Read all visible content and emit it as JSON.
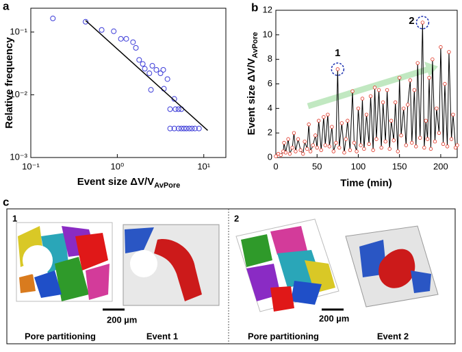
{
  "panel_labels": [
    "a",
    "b",
    "c"
  ],
  "chart_data": [
    {
      "type": "scatter",
      "x_label": "Event size ΔV/V",
      "x_label_sub": "AvPore",
      "y_label": "Relative frequency",
      "log_x": true,
      "log_y": true,
      "xlim": [
        0.1,
        18
      ],
      "ylim": [
        0.001,
        0.24
      ],
      "xticks": [
        {
          "value": 0.1,
          "label": "10⁻¹"
        },
        {
          "value": 1,
          "label": "10⁰"
        },
        {
          "value": 10,
          "label": "10¹"
        }
      ],
      "yticks": [
        {
          "value": 0.001,
          "label": "10⁻³"
        },
        {
          "value": 0.01,
          "label": "10⁻²"
        },
        {
          "value": 0.1,
          "label": "10⁻¹"
        }
      ],
      "marker_color": "#3a3ad8",
      "x": [
        0.18,
        0.43,
        0.66,
        0.91,
        1.1,
        1.27,
        1.52,
        1.64,
        1.79,
        1.97,
        2.08,
        2.54,
        2.35,
        2.83,
        3.16,
        3.4,
        2.45,
        3.46,
        3.8,
        4.56,
        4.08,
        4.7,
        5.1,
        5.5,
        4.08,
        4.56,
        5.1,
        5.5,
        5.9,
        6.3,
        6.8,
        7.3,
        7.9,
        8.8
      ],
      "values": [
        0.165,
        0.146,
        0.108,
        0.103,
        0.078,
        0.078,
        0.069,
        0.056,
        0.036,
        0.031,
        0.026,
        0.029,
        0.022,
        0.025,
        0.022,
        0.025,
        0.012,
        0.0125,
        0.0178,
        0.0086,
        0.0059,
        0.0059,
        0.0059,
        0.0059,
        0.0029,
        0.0029,
        0.0029,
        0.0029,
        0.0029,
        0.0029,
        0.0029,
        0.0029,
        0.0029,
        0.0029
      ],
      "fit_line": {
        "x": [
          0.43,
          11.1
        ],
        "y": [
          0.153,
          0.0027
        ],
        "color": "#000000"
      }
    },
    {
      "type": "line",
      "x_label": "Time (min)",
      "y_label": "Event size ΔV/V",
      "y_label_sub": "AvPore",
      "xlim": [
        0,
        220
      ],
      "ylim": [
        0,
        12
      ],
      "xticks": [
        0,
        50,
        100,
        150,
        200
      ],
      "yticks": [
        0,
        2,
        4,
        6,
        8,
        10,
        12
      ],
      "marker_color": "#e03020",
      "line_color": "#000000",
      "x": [
        0,
        3,
        6,
        9,
        10,
        12,
        15,
        17,
        20,
        22,
        24,
        27,
        30,
        33,
        35,
        38,
        40,
        42,
        45,
        48,
        50,
        52,
        55,
        58,
        60,
        63,
        65,
        68,
        70,
        73,
        75,
        77,
        80,
        83,
        85,
        87,
        90,
        93,
        95,
        98,
        100,
        103,
        105,
        107,
        110,
        113,
        115,
        118,
        120,
        122,
        125,
        128,
        130,
        133,
        135,
        138,
        140,
        143,
        145,
        148,
        150,
        152,
        155,
        158,
        160,
        163,
        165,
        168,
        170,
        172,
        175,
        178,
        180,
        182,
        184,
        186,
        188,
        190,
        193,
        195,
        198,
        200,
        203,
        205,
        208,
        210,
        213,
        215,
        218,
        220
      ],
      "values": [
        0.1,
        0.3,
        0.2,
        0.5,
        1.2,
        0.4,
        1.5,
        0.3,
        0.8,
        2.0,
        0.5,
        1.5,
        0.6,
        0.3,
        1.3,
        0.7,
        2.7,
        0.5,
        1.0,
        1.8,
        0.8,
        3.0,
        0.6,
        3.3,
        1.0,
        3.5,
        0.9,
        2.5,
        0.5,
        1.2,
        7.2,
        0.8,
        2.8,
        0.4,
        1.5,
        3.0,
        0.6,
        5.4,
        1.2,
        0.5,
        4.0,
        1.0,
        4.8,
        0.7,
        3.5,
        1.1,
        5.0,
        0.6,
        5.7,
        1.5,
        5.5,
        0.8,
        4.5,
        1.3,
        5.5,
        0.7,
        3.0,
        1.4,
        4.5,
        0.5,
        6.5,
        1.8,
        4.0,
        1.0,
        4.3,
        6.3,
        1.2,
        5.5,
        0.9,
        7.7,
        1.6,
        11.0,
        0.8,
        3.0,
        1.5,
        6.5,
        0.7,
        8.0,
        1.3,
        4.0,
        2.0,
        9.0,
        1.1,
        6.0,
        0.9,
        8.6,
        1.5,
        3.5,
        0.8,
        1.0
      ],
      "annotations": [
        {
          "text": "1",
          "x": 75,
          "y": 7.2,
          "color": "#1a2fb0"
        },
        {
          "text": "2",
          "x": 178,
          "y": 11.0,
          "color": "#1a2fb0"
        }
      ]
    }
  ],
  "panel_c": {
    "sections": [
      {
        "number": "1",
        "captions": [
          "Pore partitioning",
          "Event 1"
        ],
        "scale_bar": "200 µm"
      },
      {
        "number": "2",
        "captions": [
          "Pore partitioning",
          "Event 2"
        ],
        "scale_bar": "200 µm"
      }
    ]
  }
}
